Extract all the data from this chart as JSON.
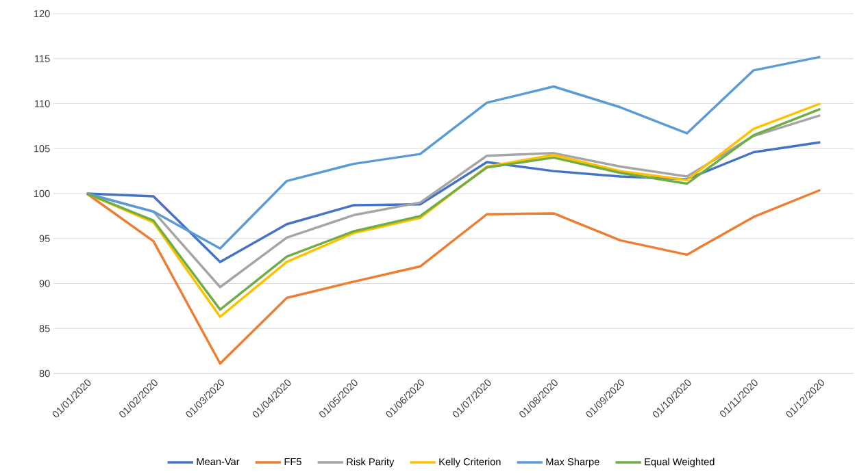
{
  "chart_data": {
    "type": "line",
    "categories": [
      "01/01/2020",
      "01/02/2020",
      "01/03/2020",
      "01/04/2020",
      "01/05/2020",
      "01/06/2020",
      "01/07/2020",
      "01/08/2020",
      "01/09/2020",
      "01/10/2020",
      "01/11/2020",
      "01/12/2020"
    ],
    "series": [
      {
        "name": "Mean-Var",
        "color": "#4472c4",
        "values": [
          100,
          99.7,
          92.4,
          96.6,
          98.7,
          98.8,
          103.5,
          102.5,
          101.9,
          101.6,
          104.6,
          105.7
        ]
      },
      {
        "name": "FF5",
        "color": "#ed7d31",
        "values": [
          100,
          94.7,
          81.1,
          88.4,
          90.2,
          91.9,
          97.7,
          97.8,
          94.8,
          93.2,
          97.4,
          100.4
        ]
      },
      {
        "name": "Risk Parity",
        "color": "#a5a5a5",
        "values": [
          100,
          98.0,
          89.6,
          95.1,
          97.6,
          99.0,
          104.2,
          104.5,
          103.0,
          101.9,
          106.4,
          108.7
        ]
      },
      {
        "name": "Kelly Criterion",
        "color": "#ffc000",
        "values": [
          100,
          96.8,
          86.3,
          92.4,
          95.6,
          97.3,
          103.0,
          104.3,
          102.5,
          101.5,
          107.2,
          110.0
        ]
      },
      {
        "name": "Max Sharpe",
        "color": "#5b9bd5",
        "values": [
          100,
          98.0,
          93.9,
          101.4,
          103.3,
          104.4,
          110.1,
          111.9,
          109.6,
          106.7,
          113.7,
          115.2
        ]
      },
      {
        "name": "Equal Weighted",
        "color": "#70ad47",
        "values": [
          100,
          97.0,
          87.1,
          93.0,
          95.8,
          97.5,
          102.9,
          104.0,
          102.3,
          101.1,
          106.5,
          109.4
        ]
      }
    ],
    "ylim": [
      80,
      120
    ],
    "yticks": [
      80,
      85,
      90,
      95,
      100,
      105,
      110,
      115,
      120
    ],
    "grid": "y",
    "legend": "bottom"
  }
}
